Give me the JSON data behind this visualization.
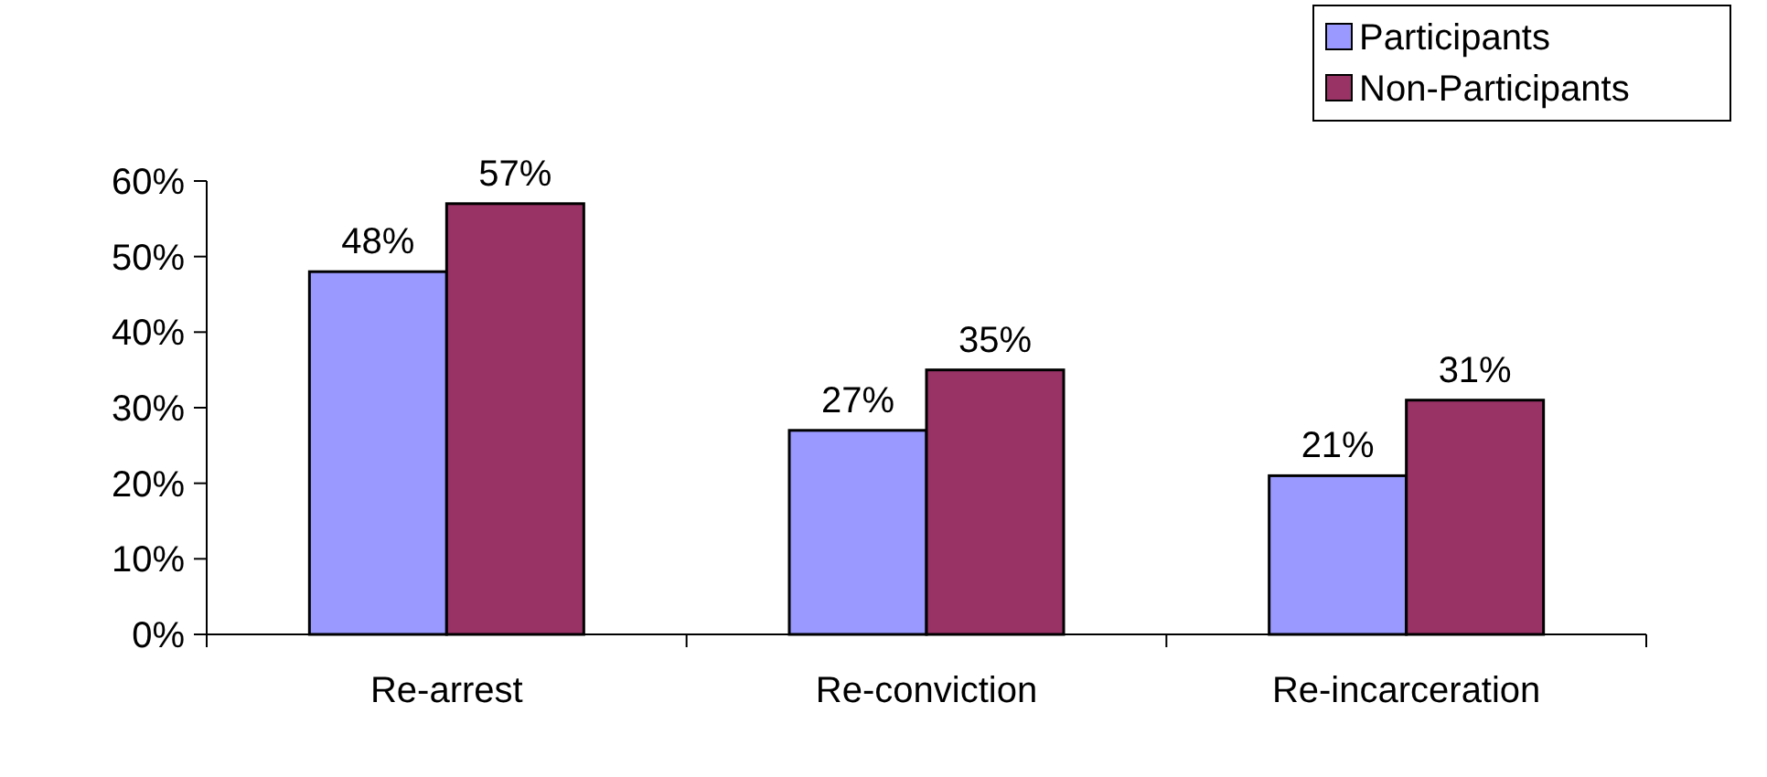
{
  "chart_data": {
    "type": "bar",
    "categories": [
      "Re-arrest",
      "Re-conviction",
      "Re-incarceration"
    ],
    "series": [
      {
        "name": "Participants",
        "color": "#9999ff",
        "values": [
          48,
          27,
          21
        ],
        "value_labels": [
          "48%",
          "27%",
          "21%"
        ]
      },
      {
        "name": "Non-Participants",
        "color": "#993366",
        "values": [
          57,
          35,
          31
        ],
        "value_labels": [
          "57%",
          "35%",
          "31%"
        ]
      }
    ],
    "ylim": [
      0,
      60
    ],
    "yticks": [
      {
        "value": 0,
        "label": "0%"
      },
      {
        "value": 10,
        "label": "10%"
      },
      {
        "value": 20,
        "label": "20%"
      },
      {
        "value": 30,
        "label": "30%"
      },
      {
        "value": 40,
        "label": "40%"
      },
      {
        "value": 50,
        "label": "50%"
      },
      {
        "value": 60,
        "label": "60%"
      }
    ],
    "grid": false,
    "legend": "top right"
  }
}
